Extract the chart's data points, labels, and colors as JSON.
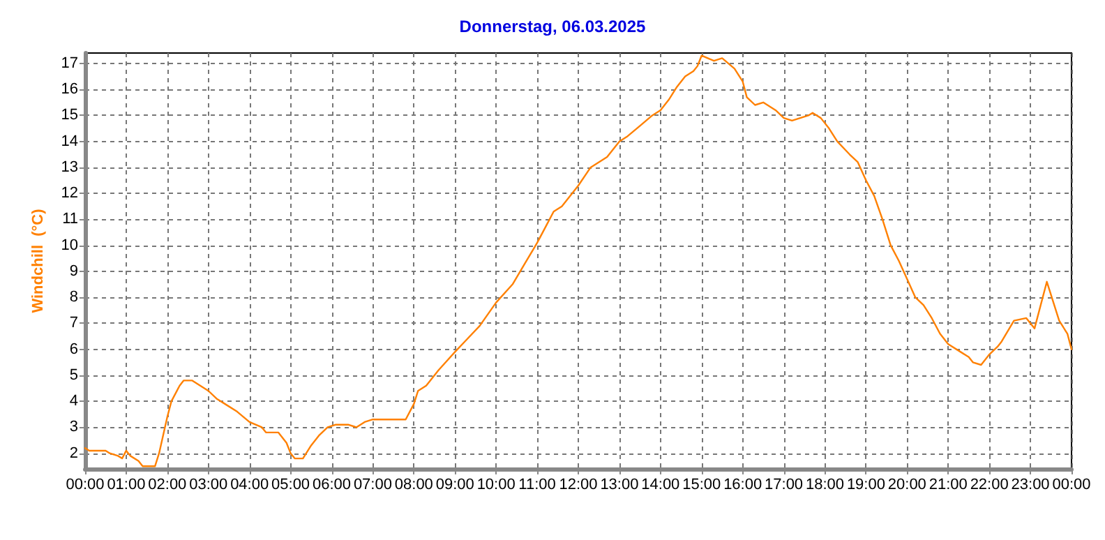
{
  "chart_data": {
    "type": "line",
    "title": "Donnerstag, 06.03.2025",
    "ylabel": "Windchill  (°C)",
    "x": [
      0,
      0.1,
      0.5,
      0.6,
      0.8,
      0.9,
      1.0,
      1.1,
      1.3,
      1.4,
      1.7,
      1.8,
      2.0,
      2.1,
      2.3,
      2.4,
      2.6,
      2.8,
      3.0,
      3.2,
      3.4,
      3.7,
      4.0,
      4.3,
      4.4,
      4.7,
      4.9,
      5.0,
      5.1,
      5.3,
      5.5,
      5.7,
      5.9,
      6.1,
      6.4,
      6.6,
      6.8,
      7.0,
      7.8,
      8.0,
      8.1,
      8.3,
      8.6,
      9.0,
      9.3,
      9.6,
      10.0,
      10.4,
      10.7,
      11.0,
      11.2,
      11.4,
      11.6,
      12.0,
      12.3,
      12.7,
      13.0,
      13.2,
      13.5,
      13.8,
      14.0,
      14.2,
      14.4,
      14.6,
      14.8,
      14.9,
      15.0,
      15.3,
      15.5,
      15.8,
      16.0,
      16.1,
      16.3,
      16.5,
      16.8,
      17.0,
      17.2,
      17.4,
      17.6,
      17.7,
      17.9,
      18.1,
      18.3,
      18.6,
      18.8,
      19.0,
      19.2,
      19.4,
      19.6,
      19.8,
      20.0,
      20.2,
      20.4,
      20.6,
      20.8,
      21.0,
      21.3,
      21.5,
      21.6,
      21.8,
      22.0,
      22.2,
      22.3,
      22.6,
      22.9,
      23.1,
      23.4,
      23.7,
      23.9,
      24.0
    ],
    "series": [
      {
        "color": "#ff8000",
        "values": [
          2.2,
          2.1,
          2.1,
          2.0,
          1.9,
          1.8,
          2.1,
          1.9,
          1.7,
          1.5,
          1.5,
          2.0,
          3.4,
          4.0,
          4.6,
          4.8,
          4.8,
          4.6,
          4.4,
          4.1,
          3.9,
          3.6,
          3.2,
          3.0,
          2.8,
          2.8,
          2.4,
          2.0,
          1.8,
          1.8,
          2.3,
          2.7,
          3.0,
          3.1,
          3.1,
          3.0,
          3.2,
          3.3,
          3.3,
          3.9,
          4.4,
          4.6,
          5.2,
          5.9,
          6.4,
          6.9,
          7.8,
          8.5,
          9.3,
          10.1,
          10.7,
          11.3,
          11.5,
          12.3,
          13.0,
          13.4,
          14.0,
          14.2,
          14.6,
          15.0,
          15.2,
          15.6,
          16.1,
          16.5,
          16.7,
          16.9,
          17.3,
          17.1,
          17.2,
          16.8,
          16.3,
          15.7,
          15.4,
          15.5,
          15.2,
          14.9,
          14.8,
          14.9,
          15.0,
          15.1,
          14.9,
          14.5,
          14.0,
          13.5,
          13.2,
          12.5,
          11.9,
          11.0,
          10.0,
          9.4,
          8.7,
          8.0,
          7.7,
          7.2,
          6.6,
          6.2,
          5.9,
          5.7,
          5.5,
          5.4,
          5.8,
          6.1,
          6.3,
          7.1,
          7.2,
          6.8,
          8.6,
          7.1,
          6.6,
          6.0
        ]
      }
    ],
    "xlim": [
      0,
      24
    ],
    "xticks": [
      {
        "value": 0,
        "label": "00:00"
      },
      {
        "value": 1,
        "label": "01:00"
      },
      {
        "value": 2,
        "label": "02:00"
      },
      {
        "value": 3,
        "label": "03:00"
      },
      {
        "value": 4,
        "label": "04:00"
      },
      {
        "value": 5,
        "label": "05:00"
      },
      {
        "value": 6,
        "label": "06:00"
      },
      {
        "value": 7,
        "label": "07:00"
      },
      {
        "value": 8,
        "label": "08:00"
      },
      {
        "value": 9,
        "label": "09:00"
      },
      {
        "value": 10,
        "label": "10:00"
      },
      {
        "value": 11,
        "label": "11:00"
      },
      {
        "value": 12,
        "label": "12:00"
      },
      {
        "value": 13,
        "label": "13:00"
      },
      {
        "value": 14,
        "label": "14:00"
      },
      {
        "value": 15,
        "label": "15:00"
      },
      {
        "value": 16,
        "label": "16:00"
      },
      {
        "value": 17,
        "label": "17:00"
      },
      {
        "value": 18,
        "label": "18:00"
      },
      {
        "value": 19,
        "label": "19:00"
      },
      {
        "value": 20,
        "label": "20:00"
      },
      {
        "value": 21,
        "label": "21:00"
      },
      {
        "value": 22,
        "label": "22:00"
      },
      {
        "value": 23,
        "label": "23:00"
      },
      {
        "value": 24,
        "label": "00:00"
      }
    ],
    "ylim": [
      1.4,
      17.4
    ],
    "yticks": [
      2,
      3,
      4,
      5,
      6,
      7,
      8,
      9,
      10,
      11,
      12,
      13,
      14,
      15,
      16,
      17
    ],
    "grid": true,
    "marker": "none",
    "line_style": "solid"
  }
}
